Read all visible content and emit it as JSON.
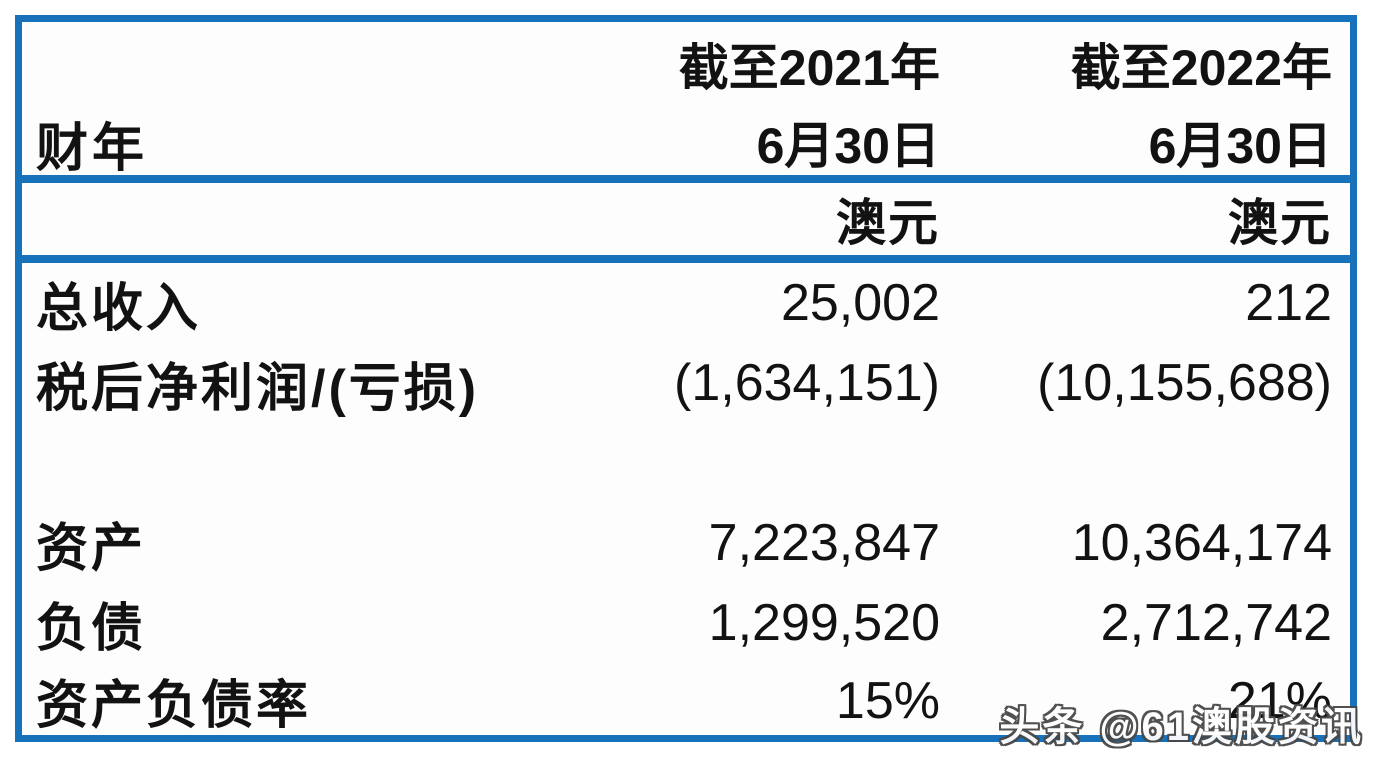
{
  "table": {
    "header": {
      "fiscal_year_label": "财年",
      "col_2021": {
        "line1": "截至2021年",
        "line2": "6月30日"
      },
      "col_2022": {
        "line1": "截至2022年",
        "line2": "6月30日"
      },
      "currency_2021": "澳元",
      "currency_2022": "澳元"
    },
    "rows": [
      {
        "label": "总收入",
        "v2021": "25,002",
        "v2022": "212"
      },
      {
        "label": "税后净利润/(亏损)",
        "v2021": "(1,634,151)",
        "v2022": "(10,155,688)"
      },
      {
        "label": "资产",
        "v2021": "7,223,847",
        "v2022": "10,364,174"
      },
      {
        "label": "负债",
        "v2021": "1,299,520",
        "v2022": "2,712,742"
      },
      {
        "label": "资产负债率",
        "v2021": "15%",
        "v2022": "21%"
      }
    ]
  },
  "watermark": {
    "text": "头条 @61澳股资讯"
  },
  "colors": {
    "border_blue": "#1872bb",
    "text": "#121212",
    "watermark_fill": "#ffffff",
    "watermark_outline": "#474747"
  }
}
